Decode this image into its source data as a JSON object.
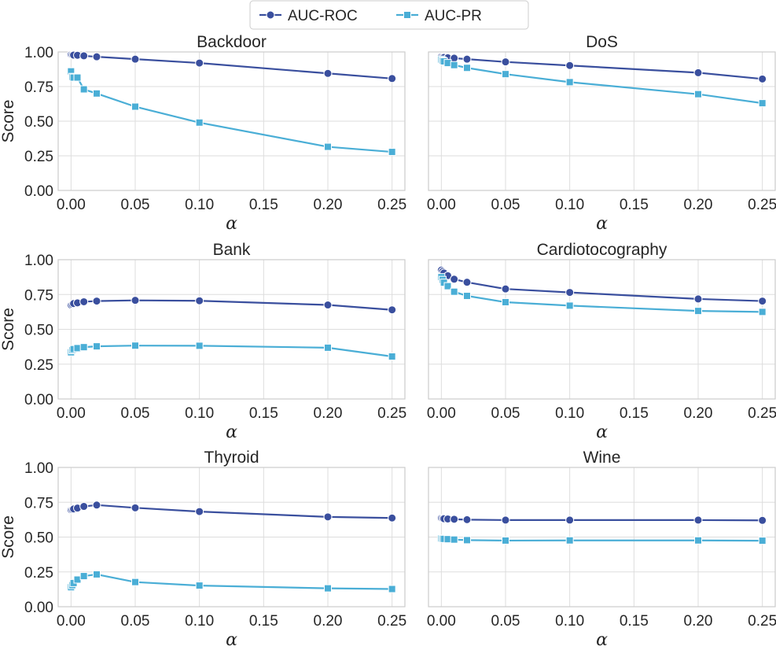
{
  "legend": {
    "entries": [
      {
        "label": "AUC-ROC",
        "color": "#3a4f9e",
        "marker": "circle"
      },
      {
        "label": "AUC-PR",
        "color": "#4aaed6",
        "marker": "square"
      }
    ]
  },
  "axes": {
    "xlabel": "α",
    "ylabel": "Score",
    "xticks": [
      "0.00",
      "0.05",
      "0.10",
      "0.15",
      "0.20",
      "0.25"
    ],
    "yticks": [
      "0.00",
      "0.25",
      "0.50",
      "0.75",
      "1.00"
    ],
    "xlim": [
      -0.01,
      0.26
    ],
    "ylim": [
      0,
      1
    ],
    "grid": true
  },
  "chart_data": [
    {
      "type": "line",
      "title": "Backdoor",
      "x": [
        0.0,
        0.001,
        0.002,
        0.005,
        0.01,
        0.02,
        0.05,
        0.1,
        0.2,
        0.25
      ],
      "series": [
        {
          "name": "AUC-ROC",
          "values": [
            0.98,
            0.978,
            0.977,
            0.976,
            0.972,
            0.965,
            0.948,
            0.92,
            0.845,
            0.808
          ]
        },
        {
          "name": "AUC-PR",
          "values": [
            0.86,
            0.82,
            0.815,
            0.815,
            0.73,
            0.7,
            0.605,
            0.49,
            0.315,
            0.278
          ]
        }
      ]
    },
    {
      "type": "line",
      "title": "DoS",
      "x": [
        0.0,
        0.001,
        0.002,
        0.005,
        0.01,
        0.02,
        0.05,
        0.1,
        0.2,
        0.25
      ],
      "series": [
        {
          "name": "AUC-ROC",
          "values": [
            0.965,
            0.962,
            0.96,
            0.958,
            0.955,
            0.948,
            0.928,
            0.902,
            0.85,
            0.805
          ]
        },
        {
          "name": "AUC-PR",
          "values": [
            0.945,
            0.938,
            0.932,
            0.92,
            0.905,
            0.885,
            0.84,
            0.782,
            0.695,
            0.63
          ]
        }
      ]
    },
    {
      "type": "line",
      "title": "Bank",
      "x": [
        0.0,
        0.001,
        0.002,
        0.005,
        0.01,
        0.02,
        0.05,
        0.1,
        0.2,
        0.25
      ],
      "series": [
        {
          "name": "AUC-ROC",
          "values": [
            0.675,
            0.68,
            0.685,
            0.69,
            0.698,
            0.703,
            0.708,
            0.705,
            0.675,
            0.64
          ]
        },
        {
          "name": "AUC-PR",
          "values": [
            0.335,
            0.35,
            0.358,
            0.365,
            0.372,
            0.378,
            0.383,
            0.382,
            0.368,
            0.305
          ]
        }
      ]
    },
    {
      "type": "line",
      "title": "Cardiotocography",
      "x": [
        0.0,
        0.001,
        0.002,
        0.005,
        0.01,
        0.02,
        0.05,
        0.1,
        0.2,
        0.25
      ],
      "series": [
        {
          "name": "AUC-ROC",
          "values": [
            0.925,
            0.915,
            0.905,
            0.885,
            0.86,
            0.838,
            0.79,
            0.765,
            0.718,
            0.703
          ]
        },
        {
          "name": "AUC-PR",
          "values": [
            0.875,
            0.855,
            0.835,
            0.81,
            0.77,
            0.74,
            0.695,
            0.67,
            0.632,
            0.625
          ]
        }
      ]
    },
    {
      "type": "line",
      "title": "Thyroid",
      "x": [
        0.0,
        0.001,
        0.002,
        0.005,
        0.01,
        0.02,
        0.05,
        0.1,
        0.2,
        0.25
      ],
      "series": [
        {
          "name": "AUC-ROC",
          "values": [
            0.695,
            0.698,
            0.702,
            0.708,
            0.72,
            0.73,
            0.71,
            0.683,
            0.645,
            0.637
          ]
        },
        {
          "name": "AUC-PR",
          "values": [
            0.14,
            0.155,
            0.17,
            0.195,
            0.22,
            0.232,
            0.177,
            0.152,
            0.132,
            0.127
          ]
        }
      ]
    },
    {
      "type": "line",
      "title": "Wine",
      "x": [
        0.0,
        0.001,
        0.002,
        0.005,
        0.01,
        0.02,
        0.05,
        0.1,
        0.2,
        0.25
      ],
      "series": [
        {
          "name": "AUC-ROC",
          "values": [
            0.635,
            0.633,
            0.632,
            0.63,
            0.628,
            0.625,
            0.622,
            0.622,
            0.622,
            0.62
          ]
        },
        {
          "name": "AUC-PR",
          "values": [
            0.49,
            0.488,
            0.487,
            0.485,
            0.482,
            0.478,
            0.475,
            0.476,
            0.476,
            0.474
          ]
        }
      ]
    }
  ]
}
